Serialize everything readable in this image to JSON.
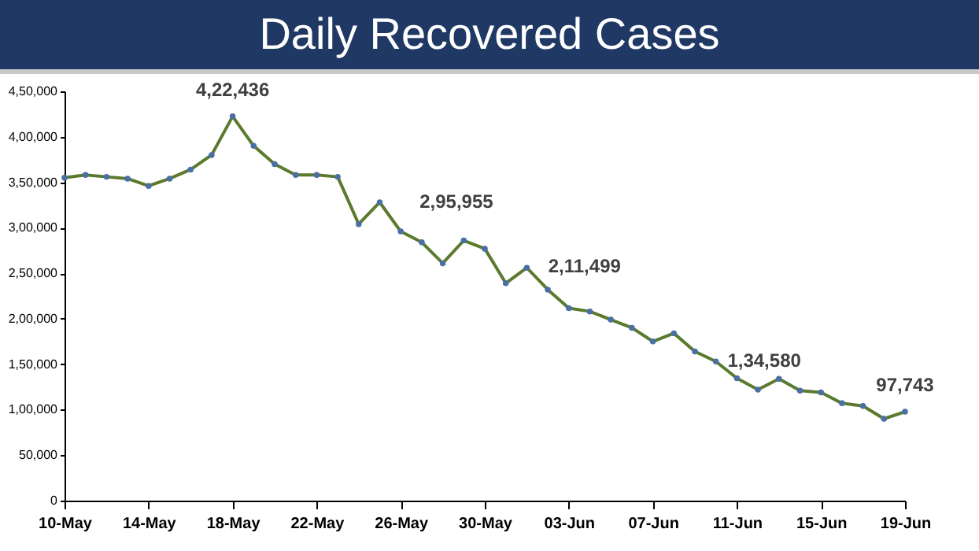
{
  "chart_data": {
    "type": "line",
    "title": "Daily Recovered Cases",
    "x": [
      "--05-10",
      "--05-11",
      "--05-12",
      "--05-13",
      "--05-14",
      "--05-15",
      "--05-16",
      "--05-17",
      "--05-18",
      "--05-19",
      "--05-20",
      "--05-21",
      "--05-22",
      "--05-23",
      "--05-24",
      "--05-25",
      "--05-26",
      "--05-27",
      "--05-28",
      "--05-29",
      "--05-30",
      "--05-31",
      "--06-01",
      "--06-02",
      "--06-03",
      "--06-04",
      "--06-05",
      "--06-06",
      "--06-07",
      "--06-08",
      "--06-09",
      "--06-10",
      "--06-11",
      "--06-12",
      "--06-13",
      "--06-14",
      "--06-15",
      "--06-16",
      "--06-17",
      "--06-18",
      "--06-19"
    ],
    "series": [
      {
        "color": "#5b7a2e",
        "values": [
          355000,
          358000,
          356000,
          354000,
          346000,
          354000,
          364000,
          380000,
          422436,
          390000,
          370000,
          358000,
          358000,
          356000,
          304000,
          328000,
          295955,
          284000,
          261000,
          286000,
          277000,
          239000,
          256000,
          232000,
          211499,
          208000,
          199000,
          190000,
          175000,
          184000,
          164000,
          153000,
          134580,
          122000,
          134000,
          121000,
          119000,
          107000,
          104000,
          90000,
          97743
        ]
      }
    ],
    "marker": "circle",
    "ylim": [
      0,
      450000
    ],
    "yticks": [
      {
        "value": 0,
        "label": "0"
      },
      {
        "value": 50000,
        "label": "50,000"
      },
      {
        "value": 100000,
        "label": "1,00,000"
      },
      {
        "value": 150000,
        "label": "1,50,000"
      },
      {
        "value": 200000,
        "label": "2,00,000"
      },
      {
        "value": 250000,
        "label": "2,50,000"
      },
      {
        "value": 300000,
        "label": "3,00,000"
      },
      {
        "value": 350000,
        "label": "3,50,000"
      },
      {
        "value": 400000,
        "label": "4,00,000"
      },
      {
        "value": 450000,
        "label": "4,50,000"
      }
    ],
    "xlim": [
      "--05-10",
      "--06-19"
    ],
    "xticks": [
      {
        "value": "--05-10",
        "label": "10-May"
      },
      {
        "value": "--05-14",
        "label": "14-May"
      },
      {
        "value": "--05-18",
        "label": "18-May"
      },
      {
        "value": "--05-22",
        "label": "22-May"
      },
      {
        "value": "--05-26",
        "label": "26-May"
      },
      {
        "value": "--05-30",
        "label": "30-May"
      },
      {
        "value": "--06-03",
        "label": "03-Jun"
      },
      {
        "value": "--06-07",
        "label": "07-Jun"
      },
      {
        "value": "--06-11",
        "label": "11-Jun"
      },
      {
        "value": "--06-15",
        "label": "15-Jun"
      },
      {
        "value": "--06-19",
        "label": "19-Jun"
      }
    ],
    "annotations": [
      {
        "text": "4,22,436",
        "x": "--05-18",
        "y": 422436
      },
      {
        "text": "2,95,955",
        "x": "--05-26",
        "y": 295955
      },
      {
        "text": "2,11,499",
        "x": "--06-03",
        "y": 211499
      },
      {
        "text": "1,34,580",
        "x": "--06-11",
        "y": 134580
      },
      {
        "text": "97,743",
        "x": "--06-19",
        "y": 97743
      }
    ],
    "grid": false,
    "legend": false
  }
}
